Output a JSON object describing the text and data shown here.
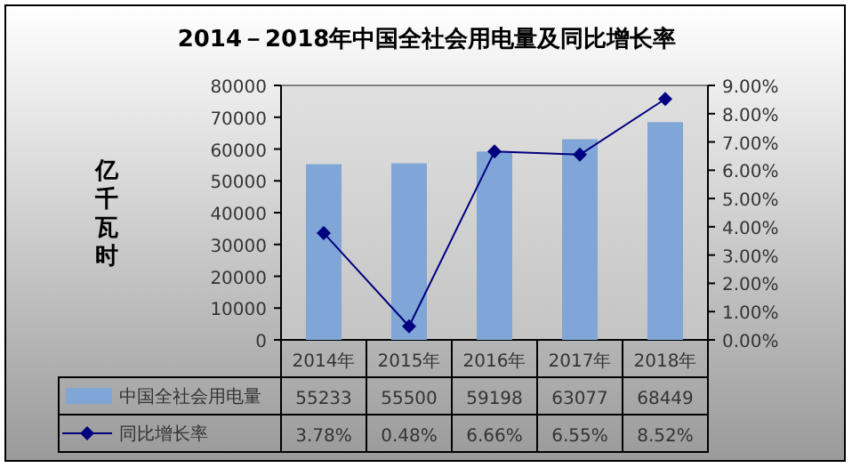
{
  "chart_data": {
    "type": "bar",
    "title": "2014－2018年中国全社会用电量及同比增长率",
    "ylabel": "亿千瓦时",
    "categories": [
      "2014年",
      "2015年",
      "2016年",
      "2017年",
      "2018年"
    ],
    "series": [
      {
        "name": "中国全社会用电量",
        "color": "#7fa6d6",
        "values": [
          55233,
          55500,
          59198,
          63077,
          68449
        ],
        "value_labels": [
          "55233",
          "55500",
          "59198",
          "63077",
          "68449"
        ]
      },
      {
        "name": "同比增长率",
        "type": "line",
        "axis": "y2",
        "color": "#000080",
        "marker": "diamond",
        "values": [
          3.78,
          0.48,
          6.66,
          6.55,
          8.52
        ],
        "value_labels": [
          "3.78%",
          "0.48%",
          "6.66%",
          "6.55%",
          "8.52%"
        ]
      }
    ],
    "ylim": [
      0,
      80000
    ],
    "yticks": [
      0,
      10000,
      20000,
      30000,
      40000,
      50000,
      60000,
      70000,
      80000
    ],
    "y2lim": [
      0,
      9
    ],
    "y2ticks": [
      {
        "value": 0,
        "label": "0.00%"
      },
      {
        "value": 1,
        "label": "1.00%"
      },
      {
        "value": 2,
        "label": "2.00%"
      },
      {
        "value": 3,
        "label": "3.00%"
      },
      {
        "value": 4,
        "label": "4.00%"
      },
      {
        "value": 5,
        "label": "5.00%"
      },
      {
        "value": 6,
        "label": "6.00%"
      },
      {
        "value": 7,
        "label": "7.00%"
      },
      {
        "value": 8,
        "label": "8.00%"
      },
      {
        "value": 9,
        "label": "9.00%"
      }
    ],
    "grid": false,
    "legend": "bottom"
  }
}
